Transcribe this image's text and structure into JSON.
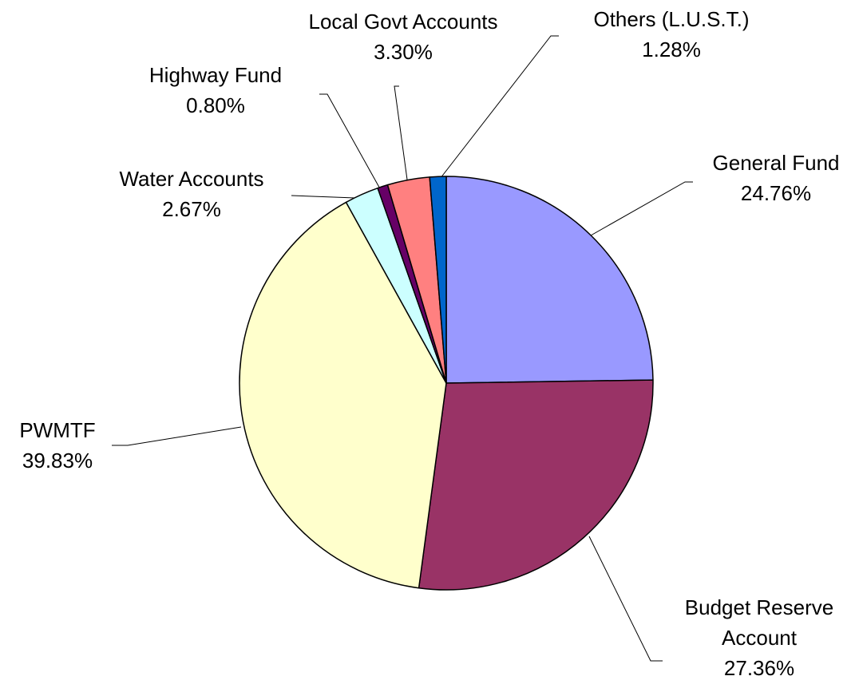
{
  "chart_data": {
    "type": "pie",
    "categories": [
      "General Fund",
      "Budget Reserve Account",
      "PWMTF",
      "Water Accounts",
      "Highway Fund",
      "Local Govt Accounts",
      "Others (L.U.S.T.)"
    ],
    "values": [
      24.76,
      27.36,
      39.83,
      2.67,
      0.8,
      3.3,
      1.28
    ],
    "value_labels": [
      "24.76%",
      "27.36%",
      "39.83%",
      "2.67%",
      "0.80%",
      "3.30%",
      "1.28%"
    ],
    "colors": [
      "#9999ff",
      "#993366",
      "#ffffcc",
      "#ccffff",
      "#660066",
      "#ff8080",
      "#0066cc"
    ]
  }
}
